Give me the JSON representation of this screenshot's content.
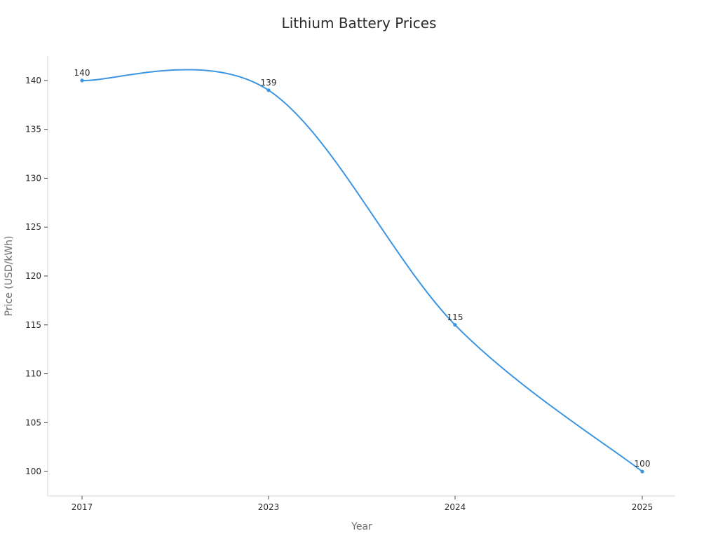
{
  "chart_data": {
    "type": "line",
    "title": "Lithium Battery Prices",
    "xlabel": "Year",
    "ylabel": "Price (USD/kWh)",
    "categories": [
      "2017",
      "2023",
      "2024",
      "2025"
    ],
    "series": [
      {
        "values": [
          140,
          139,
          115,
          100
        ],
        "color": "#3b95e0"
      }
    ],
    "data_labels": [
      "140",
      "139",
      "115",
      "100"
    ],
    "ylim": [
      97.5,
      142.5
    ],
    "yticks": [
      100,
      105,
      110,
      115,
      120,
      125,
      130,
      135,
      140
    ],
    "grid": false,
    "legend": "none",
    "curve": "smooth"
  }
}
